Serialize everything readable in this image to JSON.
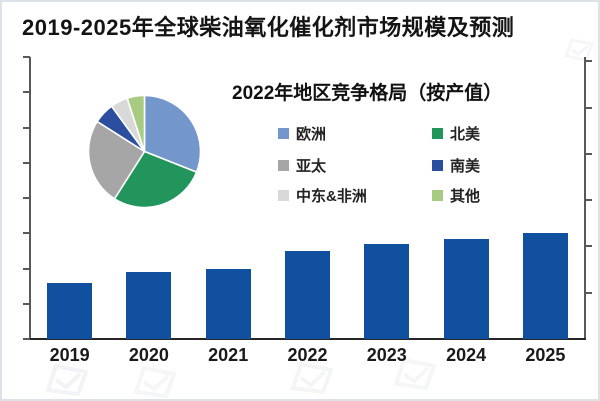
{
  "page": {
    "title": "2019-2025年全球柴油氧化催化剂市场规模及预测"
  },
  "colors": {
    "bar_fill": "#11509f",
    "axis_line": "#595959",
    "baseline": "#262626",
    "frame_border": "#dde1e8",
    "background": "#ffffff"
  },
  "chart_data": [
    {
      "type": "pie",
      "title": "2022年地区竞争格局（按产值）",
      "legend_position": "right-of-pie, 2 columns",
      "unit": "percent (estimated from slice angles; no data labels shown in image)",
      "slices": [
        {
          "label": "欧洲",
          "value": 31,
          "color": "#7397cb"
        },
        {
          "label": "北美",
          "value": 28,
          "color": "#21955c"
        },
        {
          "label": "亚太",
          "value": 25,
          "color": "#a6a6a6"
        },
        {
          "label": "南美",
          "value": 6,
          "color": "#2b4f9e"
        },
        {
          "label": "中东&非洲",
          "value": 5,
          "color": "#d9d9d9"
        },
        {
          "label": "其他",
          "value": 5,
          "color": "#a7cb80"
        }
      ]
    },
    {
      "type": "bar",
      "title": "2019-2025年全球柴油氧化催化剂市场规模及预测",
      "categories": [
        "2019",
        "2020",
        "2021",
        "2022",
        "2023",
        "2024",
        "2025"
      ],
      "values": [
        1.6,
        1.9,
        2.0,
        2.5,
        2.7,
        2.85,
        3.0
      ],
      "ylim": [
        0,
        8
      ],
      "xlabel": "",
      "ylabel": "",
      "grid": false,
      "bar_color": "#11509f",
      "left_axis_tick_count": 9,
      "right_axis_tick_count": 6,
      "note": "Both y-axes show tick marks only, no numeric labels; values are estimated in left-axis tick units (1 unit = 1 tick interval)"
    }
  ],
  "icons": {
    "watermark": "watermark-logo-icon (faint tiled site logo marks along bottom edge)"
  }
}
